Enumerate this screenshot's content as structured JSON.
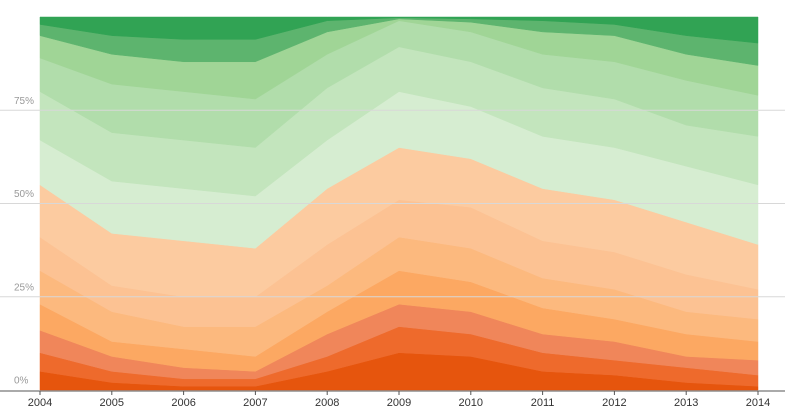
{
  "chart_data": {
    "type": "stacked-area",
    "categories": [
      "2004",
      "2005",
      "2006",
      "2007",
      "2008",
      "2009",
      "2010",
      "2011",
      "2012",
      "2013",
      "2014"
    ],
    "ylim": [
      0,
      100
    ],
    "yticks": [
      {
        "value": 0,
        "label": "0%"
      },
      {
        "value": 25,
        "label": "25%"
      },
      {
        "value": 50,
        "label": "50%"
      },
      {
        "value": 75,
        "label": "75%"
      }
    ],
    "grid": true,
    "series": [
      {
        "color": "#e6550d",
        "values": [
          5,
          2,
          1,
          1,
          5,
          10,
          9,
          5,
          4,
          2,
          1
        ]
      },
      {
        "color": "#ee6a2c",
        "values": [
          5,
          3,
          2,
          2,
          4,
          7,
          6,
          5,
          4,
          4,
          3
        ]
      },
      {
        "color": "#f0865a",
        "values": [
          6,
          4,
          3,
          2,
          6,
          6,
          6,
          5,
          5,
          3,
          4
        ]
      },
      {
        "color": "#fca862",
        "values": [
          7,
          4,
          5,
          4,
          6,
          9,
          8,
          7,
          6,
          6,
          5
        ]
      },
      {
        "color": "#fcb97e",
        "values": [
          9,
          8,
          6,
          8,
          7,
          9,
          9,
          8,
          8,
          6,
          6
        ]
      },
      {
        "color": "#fcc293",
        "values": [
          9,
          7,
          8,
          8,
          11,
          10,
          11,
          10,
          10,
          10,
          8
        ]
      },
      {
        "color": "#fccba0",
        "values": [
          14,
          14,
          15,
          13,
          15,
          14,
          13,
          14,
          14,
          14,
          12
        ]
      },
      {
        "color": "#d6edd1",
        "values": [
          12,
          14,
          14,
          14,
          13,
          15,
          14,
          14,
          14,
          15,
          16
        ]
      },
      {
        "color": "#c3e5bd",
        "values": [
          13,
          13,
          13,
          13,
          14,
          12,
          12,
          13,
          13,
          11,
          13
        ]
      },
      {
        "color": "#b1ddab",
        "values": [
          9,
          13,
          13,
          13,
          9,
          7,
          8,
          9,
          10,
          12,
          11
        ]
      },
      {
        "color": "#a0d596",
        "values": [
          6,
          8,
          8,
          10,
          6,
          0.5,
          2.6,
          6,
          7,
          7,
          8
        ]
      },
      {
        "color": "#5db46e",
        "values": [
          3,
          5,
          6,
          6,
          3,
          0.3,
          0.9,
          3,
          3,
          5,
          6
        ]
      },
      {
        "color": "#31a354",
        "values": [
          2,
          5,
          6,
          6,
          1,
          0.2,
          0.5,
          1,
          2,
          5,
          7
        ]
      }
    ]
  }
}
